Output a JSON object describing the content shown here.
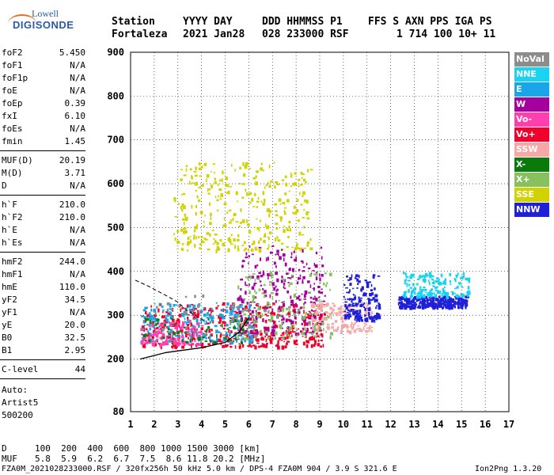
{
  "logo": {
    "line1": "Lowell",
    "line2": "DIGISONDE"
  },
  "header": {
    "labels": [
      "Station",
      "YYYY DAY",
      "DDD HHMMSS P1",
      "FFS S AXN PPS IGA PS"
    ],
    "values": [
      "Fortaleza",
      "2021 Jan28",
      "028 233000 RSF",
      "1 714 100 10+ 11"
    ]
  },
  "params_group1": [
    {
      "key": "foF2",
      "value": "5.450"
    },
    {
      "key": "foF1",
      "value": "N/A"
    },
    {
      "key": "foF1p",
      "value": "N/A"
    },
    {
      "key": "foE",
      "value": "N/A"
    },
    {
      "key": "foEp",
      "value": "0.39"
    },
    {
      "key": "fxI",
      "value": "6.10"
    },
    {
      "key": "foEs",
      "value": "N/A"
    },
    {
      "key": "fmin",
      "value": "1.45"
    }
  ],
  "params_group2": [
    {
      "key": "MUF(D)",
      "value": "20.19"
    },
    {
      "key": "M(D)",
      "value": "3.71"
    },
    {
      "key": "D",
      "value": "N/A"
    }
  ],
  "params_group3": [
    {
      "key": "h`F",
      "value": "210.0"
    },
    {
      "key": "h`F2",
      "value": "210.0"
    },
    {
      "key": "h`E",
      "value": "N/A"
    },
    {
      "key": "h`Es",
      "value": "N/A"
    }
  ],
  "params_group4": [
    {
      "key": "hmF2",
      "value": "244.0"
    },
    {
      "key": "hmF1",
      "value": "N/A"
    },
    {
      "key": "hmE",
      "value": "110.0"
    },
    {
      "key": "yF2",
      "value": "34.5"
    },
    {
      "key": "yF1",
      "value": "N/A"
    },
    {
      "key": "yE",
      "value": "20.0"
    },
    {
      "key": "B0",
      "value": "32.5"
    },
    {
      "key": "B1",
      "value": "2.95"
    }
  ],
  "clevel": {
    "key": "C-level",
    "value": "44"
  },
  "auto": [
    "Auto:",
    "Artist5",
    "500200"
  ],
  "legend": [
    {
      "label": "NoVal",
      "color": "#8c8c8c"
    },
    {
      "label": "NNE",
      "color": "#19d3f0"
    },
    {
      "label": "E",
      "color": "#18a6e8"
    },
    {
      "label": "W",
      "color": "#a4009e"
    },
    {
      "label": "Vo-",
      "color": "#ff3fb0"
    },
    {
      "label": "Vo+",
      "color": "#f0002a"
    },
    {
      "label": "SSW",
      "color": "#f6a8a8"
    },
    {
      "label": "X-",
      "color": "#0a7a0a"
    },
    {
      "label": "X+",
      "color": "#88c060"
    },
    {
      "label": "SSE",
      "color": "#d2d200"
    },
    {
      "label": "NNW",
      "color": "#2020d8"
    }
  ],
  "chart_data": {
    "type": "scatter",
    "xlim": [
      1,
      17
    ],
    "ylim": [
      80,
      900
    ],
    "x_ticks": [
      "1",
      "2",
      "3",
      "4",
      "5",
      "6",
      "7",
      "8",
      "9",
      "10",
      "11",
      "12",
      "13",
      "14",
      "15",
      "16",
      "17"
    ],
    "y_ticks": [
      "900",
      "800",
      "700",
      "600",
      "500",
      "400",
      "300",
      "200",
      "80"
    ],
    "grid": true,
    "clusters": [
      {
        "direction": "Vo+",
        "x_range": [
          1.4,
          9.2
        ],
        "y_range": [
          230,
          330
        ],
        "count": 500
      },
      {
        "direction": "E",
        "x_range": [
          1.4,
          6.2
        ],
        "y_range": [
          240,
          330
        ],
        "count": 220
      },
      {
        "direction": "SSE",
        "x_range": [
          2.8,
          8.6
        ],
        "y_range": [
          450,
          650
        ],
        "count": 340
      },
      {
        "direction": "W",
        "x_range": [
          5.5,
          9.2
        ],
        "y_range": [
          260,
          460
        ],
        "count": 260
      },
      {
        "direction": "X+",
        "x_range": [
          5.5,
          9.5
        ],
        "y_range": [
          250,
          400
        ],
        "count": 140
      },
      {
        "direction": "SSW",
        "x_range": [
          8.6,
          11.2
        ],
        "y_range": [
          265,
          330
        ],
        "count": 150
      },
      {
        "direction": "NNW",
        "x_range": [
          10.0,
          11.5
        ],
        "y_range": [
          290,
          395
        ],
        "count": 160
      },
      {
        "direction": "NNW",
        "x_range": [
          12.3,
          15.2
        ],
        "y_range": [
          320,
          345
        ],
        "count": 300
      },
      {
        "direction": "NNE",
        "x_range": [
          12.5,
          15.3
        ],
        "y_range": [
          345,
          400
        ],
        "count": 160
      },
      {
        "direction": "Vo-",
        "x_range": [
          1.4,
          4.0
        ],
        "y_range": [
          235,
          290
        ],
        "count": 120
      },
      {
        "direction": "X-",
        "x_range": [
          1.5,
          6.0
        ],
        "y_range": [
          240,
          300
        ],
        "count": 60
      },
      {
        "direction": "NoVal",
        "x_range": [
          2.0,
          9.0
        ],
        "y_range": [
          250,
          350
        ],
        "count": 60
      }
    ],
    "profile_solid": [
      [
        1.4,
        200
      ],
      [
        2.5,
        215
      ],
      [
        4.0,
        226
      ],
      [
        5.0,
        238
      ],
      [
        5.6,
        262
      ],
      [
        6.0,
        295
      ]
    ],
    "profile_dashed": [
      [
        1.2,
        380
      ],
      [
        1.8,
        365
      ],
      [
        2.5,
        345
      ],
      [
        3.0,
        330
      ],
      [
        3.4,
        310
      ],
      [
        4.2,
        285
      ]
    ]
  },
  "footer": {
    "d_label": "D",
    "d_values": "100  200  400  600  800 1000 1500 3000 [km]",
    "muf_label": "MUF",
    "muf_values": "5.8  5.9  6.2  6.7  7.5  8.6 11.8 20.2 [MHz]",
    "file_info": "FZA0M_2021028233000.RSF / 320fx256h 50 kHz 5.0 km / DPS-4 FZA0M 904 / 3.9 S 321.6 E",
    "version": "Ion2Png 1.3.20"
  }
}
